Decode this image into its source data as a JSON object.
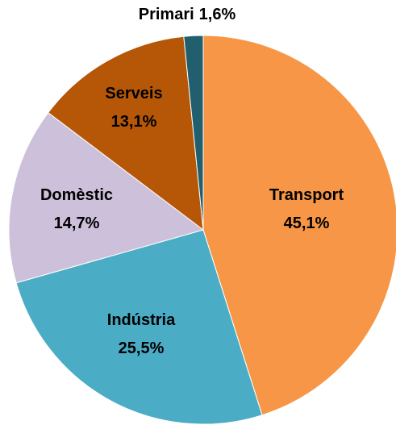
{
  "chart_data": {
    "type": "pie",
    "categories": [
      "Transport",
      "Indústria",
      "Domèstic",
      "Serveis",
      "Primari"
    ],
    "values": [
      45.1,
      25.5,
      14.7,
      13.1,
      1.6
    ],
    "value_labels": [
      "45,1%",
      "25,5%",
      "14,7%",
      "13,1%",
      "1,6%"
    ],
    "colors": [
      "#f79646",
      "#4bacc6",
      "#ccc0da",
      "#b65708",
      "#215e6e"
    ]
  }
}
